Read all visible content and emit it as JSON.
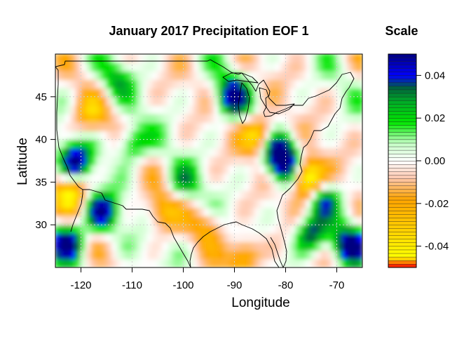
{
  "chart_data": {
    "type": "heatmap",
    "title": "January 2017 Precipitation EOF 1",
    "xlabel": "Longitude",
    "ylabel": "Latitude",
    "xlim": [
      -125,
      -65
    ],
    "ylim": [
      25,
      50
    ],
    "x_ticks": [
      -120,
      -110,
      -100,
      -90,
      -80,
      -70
    ],
    "y_ticks": [
      30,
      35,
      40,
      45
    ],
    "x_tick_labels": [
      "-120",
      "-110",
      "-100",
      "-90",
      "-80",
      "-70"
    ],
    "y_tick_labels": [
      "30",
      "35",
      "40",
      "45"
    ],
    "grid": true,
    "legend": {
      "title": "Scale",
      "position": "right",
      "range": [
        -0.05,
        0.05
      ],
      "ticks": [
        0.04,
        0.02,
        0.0,
        -0.02,
        -0.04
      ],
      "tick_labels": [
        "0.04",
        "0.02",
        "0.00",
        "-0.02",
        "-0.04"
      ],
      "colors": [
        "#ff0000",
        "#ffff00",
        "#ffa500",
        "#ffffff",
        "#00ff00",
        "#006400",
        "#0000ff",
        "#000080"
      ]
    },
    "features": [
      {
        "lon": -122.5,
        "lat": 28.0,
        "value": 0.05
      },
      {
        "lon": -121.0,
        "lat": 37.5,
        "value": 0.045
      },
      {
        "lon": -122.0,
        "lat": 33.8,
        "value": -0.04
      },
      {
        "lon": -116.0,
        "lat": 31.5,
        "value": 0.045
      },
      {
        "lon": -110.0,
        "lat": 39.5,
        "value": 0.03
      },
      {
        "lon": -104.0,
        "lat": 31.5,
        "value": -0.025
      },
      {
        "lon": -90.5,
        "lat": 45.0,
        "value": 0.045
      },
      {
        "lon": -81.5,
        "lat": 38.5,
        "value": 0.05
      },
      {
        "lon": -79.5,
        "lat": 36.5,
        "value": 0.045
      },
      {
        "lon": -76.5,
        "lat": 36.0,
        "value": -0.05
      },
      {
        "lon": -74.5,
        "lat": 34.5,
        "value": -0.045
      },
      {
        "lon": -73.0,
        "lat": 33.5,
        "value": 0.045
      },
      {
        "lon": -67.5,
        "lat": 27.5,
        "value": 0.05
      },
      {
        "lon": -75.0,
        "lat": 29.0,
        "value": 0.04
      },
      {
        "lon": -85.0,
        "lat": 40.5,
        "value": -0.045
      },
      {
        "lon": -88.0,
        "lat": 26.5,
        "value": -0.035
      },
      {
        "lon": -95.0,
        "lat": 30.0,
        "value": -0.02
      },
      {
        "lon": -100.0,
        "lat": 35.0,
        "value": 0.02
      },
      {
        "lon": -118.0,
        "lat": 43.0,
        "value": -0.025
      },
      {
        "lon": -113.0,
        "lat": 47.0,
        "value": 0.02
      }
    ]
  }
}
